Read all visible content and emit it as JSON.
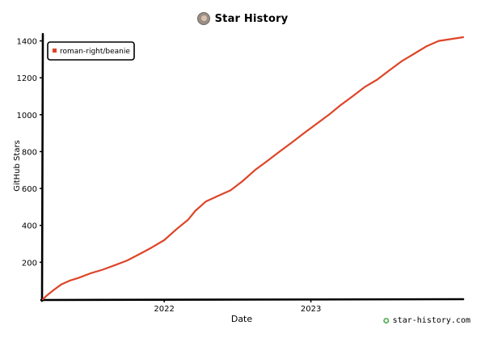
{
  "header": {
    "title": "Star History",
    "avatar_icon": "avatar-icon"
  },
  "footer": {
    "text": "star-history.com",
    "icon": "star-logo-icon",
    "icon_color": "#3fa03f"
  },
  "colors": {
    "line": "#dd4528",
    "axis": "#000000",
    "background": "#ffffff"
  },
  "chart_data": {
    "type": "line",
    "title": "Star History",
    "xlabel": "Date",
    "ylabel": "GitHub Stars",
    "x_ticks": [
      "2022",
      "2023"
    ],
    "y_ticks": [
      200,
      400,
      600,
      800,
      1000,
      1200,
      1400
    ],
    "ylim": [
      0,
      1420
    ],
    "xlim": [
      "2021-03-05",
      "2024-01-15"
    ],
    "legend": {
      "placement": "top-left",
      "entries": [
        "roman-right/beanie"
      ]
    },
    "grid": false,
    "series": [
      {
        "name": "roman-right/beanie",
        "color": "#dd4528",
        "points": [
          [
            "2021-03-05",
            0
          ],
          [
            "2021-03-15",
            20
          ],
          [
            "2021-04-01",
            50
          ],
          [
            "2021-04-20",
            80
          ],
          [
            "2021-05-10",
            100
          ],
          [
            "2021-06-01",
            115
          ],
          [
            "2021-07-01",
            140
          ],
          [
            "2021-08-01",
            160
          ],
          [
            "2021-09-01",
            185
          ],
          [
            "2021-10-01",
            210
          ],
          [
            "2021-11-01",
            245
          ],
          [
            "2021-12-01",
            280
          ],
          [
            "2022-01-01",
            320
          ],
          [
            "2022-02-01",
            380
          ],
          [
            "2022-03-01",
            430
          ],
          [
            "2022-03-20",
            480
          ],
          [
            "2022-04-15",
            530
          ],
          [
            "2022-05-15",
            560
          ],
          [
            "2022-06-15",
            590
          ],
          [
            "2022-07-15",
            640
          ],
          [
            "2022-08-15",
            700
          ],
          [
            "2022-09-15",
            750
          ],
          [
            "2022-10-15",
            800
          ],
          [
            "2022-11-15",
            850
          ],
          [
            "2022-12-15",
            900
          ],
          [
            "2023-01-15",
            950
          ],
          [
            "2023-02-15",
            1000
          ],
          [
            "2023-03-15",
            1050
          ],
          [
            "2023-04-15",
            1100
          ],
          [
            "2023-05-15",
            1150
          ],
          [
            "2023-06-15",
            1190
          ],
          [
            "2023-07-15",
            1240
          ],
          [
            "2023-08-15",
            1290
          ],
          [
            "2023-09-15",
            1330
          ],
          [
            "2023-10-15",
            1370
          ],
          [
            "2023-11-15",
            1400
          ],
          [
            "2024-01-15",
            1420
          ]
        ]
      }
    ]
  }
}
